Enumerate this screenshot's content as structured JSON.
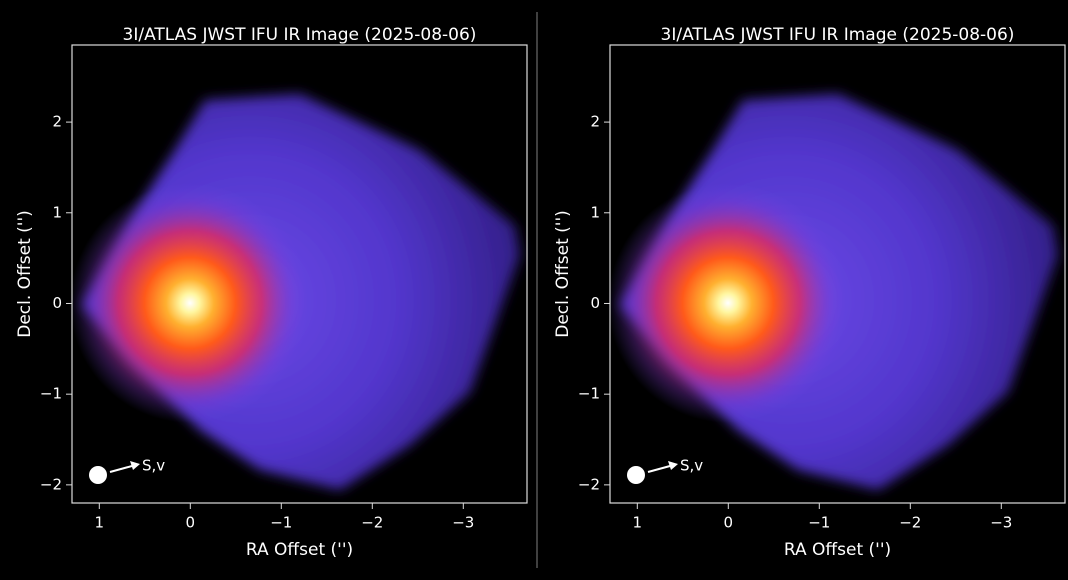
{
  "chart_data": [
    {
      "type": "image",
      "title": "3I/ATLAS JWST IFU IR Image (2025-08-06)",
      "x_label": "RA Offset ('')",
      "y_label": "Decl. Offset ('')",
      "annotation": "S,v",
      "xlim": [
        1.3,
        -3.7
      ],
      "ylim": [
        -2.2,
        2.85
      ],
      "xticks": [
        1,
        0,
        {
          "value": -1,
          "label": "−1"
        },
        {
          "value": -2,
          "label": "−2"
        },
        {
          "value": -3,
          "label": "−3"
        }
      ],
      "yticks": [
        {
          "value": -2,
          "label": "−2"
        },
        {
          "value": -1,
          "label": "−1"
        },
        0,
        1,
        2
      ]
    },
    {
      "type": "image",
      "title": "3I/ATLAS JWST IFU IR Image (2025-08-06)",
      "x_label": "RA Offset ('')",
      "y_label": "Decl. Offset ('')",
      "annotation": "S,v",
      "xlim": [
        1.3,
        -3.7
      ],
      "ylim": [
        -2.2,
        2.85
      ],
      "xticks": [
        1,
        0,
        {
          "value": -1,
          "label": "−1"
        },
        {
          "value": -2,
          "label": "−2"
        },
        {
          "value": -3,
          "label": "−3"
        }
      ],
      "yticks": [
        {
          "value": -2,
          "label": "−2"
        },
        {
          "value": -1,
          "label": "−1"
        },
        0,
        1,
        2
      ]
    }
  ]
}
